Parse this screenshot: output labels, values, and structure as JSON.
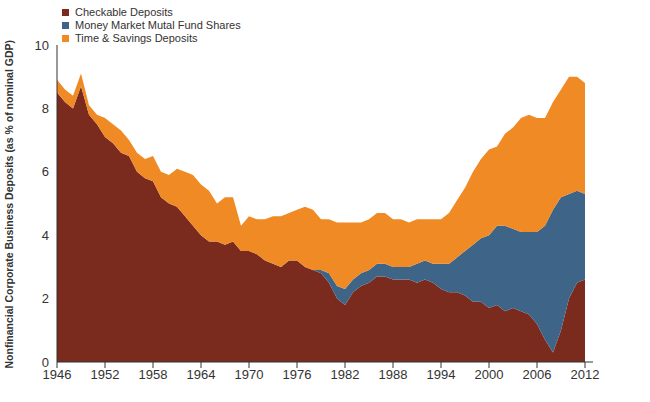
{
  "chart_data": {
    "type": "area",
    "stacked": true,
    "legend": "top-left",
    "grid": false,
    "y_label": "Nonfinancial Corporate Business Deposits (as % of nominal GDP)",
    "x": [
      1946,
      1947,
      1948,
      1949,
      1950,
      1951,
      1952,
      1953,
      1954,
      1955,
      1956,
      1957,
      1958,
      1959,
      1960,
      1961,
      1962,
      1963,
      1964,
      1965,
      1966,
      1967,
      1968,
      1969,
      1970,
      1971,
      1972,
      1973,
      1974,
      1975,
      1976,
      1977,
      1978,
      1979,
      1980,
      1981,
      1982,
      1983,
      1984,
      1985,
      1986,
      1987,
      1988,
      1989,
      1990,
      1991,
      1992,
      1993,
      1994,
      1995,
      1996,
      1997,
      1998,
      1999,
      2000,
      2001,
      2002,
      2003,
      2004,
      2005,
      2006,
      2007,
      2008,
      2009,
      2010,
      2011,
      2012
    ],
    "xlim": [
      1946,
      2013
    ],
    "xticks": [
      1946,
      1952,
      1958,
      1964,
      1970,
      1976,
      1982,
      1988,
      1994,
      2000,
      2006,
      2012
    ],
    "ylim": [
      0,
      10
    ],
    "yticks": [
      0,
      2,
      4,
      6,
      8,
      10
    ],
    "series": [
      {
        "name": "Checkable Deposits",
        "color": "#7b2a1e",
        "values": [
          8.5,
          8.2,
          8.0,
          8.7,
          7.8,
          7.5,
          7.1,
          6.9,
          6.6,
          6.5,
          6.0,
          5.8,
          5.7,
          5.2,
          5.0,
          4.9,
          4.6,
          4.3,
          4.0,
          3.8,
          3.8,
          3.7,
          3.8,
          3.5,
          3.5,
          3.4,
          3.2,
          3.1,
          3.0,
          3.2,
          3.2,
          3.0,
          2.9,
          2.8,
          2.5,
          2.0,
          1.8,
          2.2,
          2.4,
          2.5,
          2.7,
          2.7,
          2.6,
          2.6,
          2.6,
          2.5,
          2.6,
          2.5,
          2.3,
          2.2,
          2.2,
          2.1,
          1.9,
          1.9,
          1.7,
          1.8,
          1.6,
          1.7,
          1.6,
          1.5,
          1.2,
          0.7,
          0.3,
          1.0,
          2.0,
          2.5,
          2.6
        ]
      },
      {
        "name": "Money Market Mutal Fund Shares",
        "color": "#3e6487",
        "values": [
          0,
          0,
          0,
          0,
          0,
          0,
          0,
          0,
          0,
          0,
          0,
          0,
          0,
          0,
          0,
          0,
          0,
          0,
          0,
          0,
          0,
          0,
          0,
          0,
          0,
          0,
          0,
          0,
          0,
          0,
          0,
          0,
          0,
          0.1,
          0.3,
          0.4,
          0.5,
          0.4,
          0.4,
          0.4,
          0.4,
          0.4,
          0.4,
          0.4,
          0.4,
          0.6,
          0.6,
          0.6,
          0.8,
          0.9,
          1.1,
          1.4,
          1.8,
          2.0,
          2.3,
          2.5,
          2.7,
          2.5,
          2.5,
          2.6,
          2.9,
          3.6,
          4.5,
          4.2,
          3.3,
          2.9,
          2.7
        ]
      },
      {
        "name": "Time & Savings Deposits",
        "color": "#f08a24",
        "values": [
          0.4,
          0.4,
          0.4,
          0.4,
          0.3,
          0.3,
          0.6,
          0.6,
          0.7,
          0.5,
          0.6,
          0.6,
          0.8,
          0.8,
          0.9,
          1.2,
          1.4,
          1.6,
          1.6,
          1.6,
          1.2,
          1.5,
          1.4,
          0.8,
          1.1,
          1.1,
          1.3,
          1.5,
          1.6,
          1.5,
          1.6,
          1.9,
          1.9,
          1.6,
          1.7,
          2.0,
          2.1,
          1.8,
          1.6,
          1.6,
          1.6,
          1.6,
          1.5,
          1.5,
          1.4,
          1.4,
          1.3,
          1.4,
          1.4,
          1.6,
          1.8,
          2.0,
          2.3,
          2.5,
          2.7,
          2.5,
          2.9,
          3.2,
          3.6,
          3.7,
          3.6,
          3.4,
          3.4,
          3.4,
          3.7,
          3.6,
          3.5
        ]
      }
    ]
  }
}
